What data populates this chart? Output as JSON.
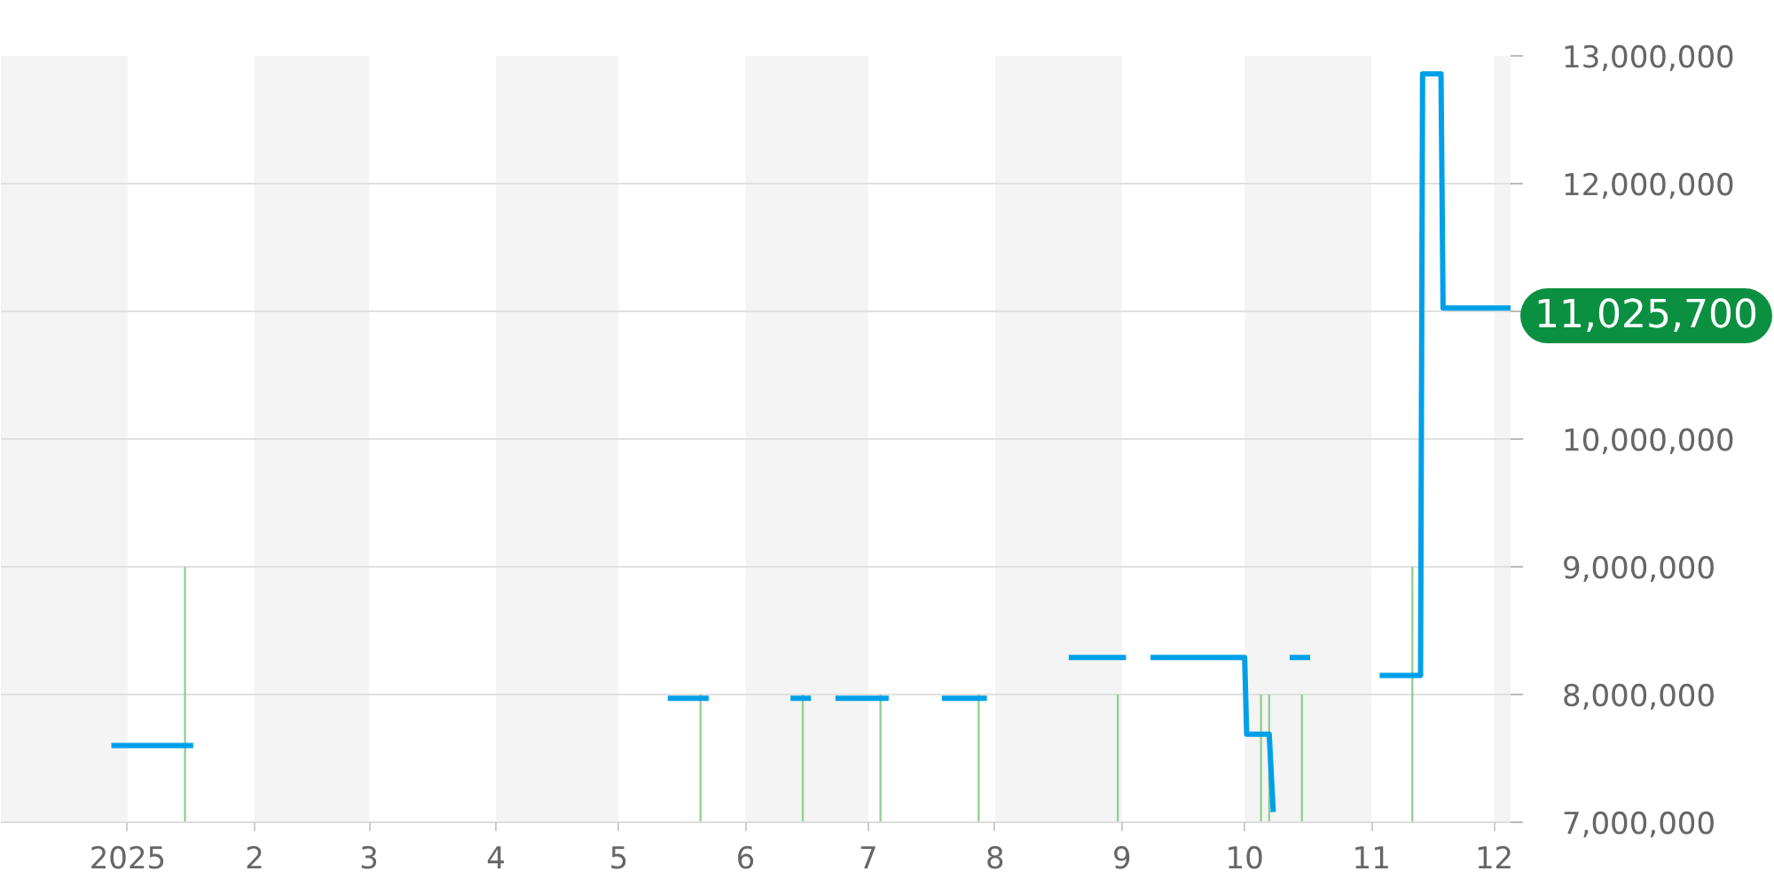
{
  "chart_data": {
    "type": "line",
    "xlim": [
      "2024-12-01",
      "2025-12-05"
    ],
    "xticks": [
      {
        "value": "2025-01-01",
        "label": "2025"
      },
      {
        "value": "2025-02-01",
        "label": "2"
      },
      {
        "value": "2025-03-01",
        "label": "3"
      },
      {
        "value": "2025-04-01",
        "label": "4"
      },
      {
        "value": "2025-05-01",
        "label": "5"
      },
      {
        "value": "2025-06-01",
        "label": "6"
      },
      {
        "value": "2025-07-01",
        "label": "7"
      },
      {
        "value": "2025-08-01",
        "label": "8"
      },
      {
        "value": "2025-09-01",
        "label": "9"
      },
      {
        "value": "2025-10-01",
        "label": "10"
      },
      {
        "value": "2025-11-01",
        "label": "11"
      },
      {
        "value": "2025-12-01",
        "label": "12"
      }
    ],
    "ylim": [
      7000000,
      13000000
    ],
    "yticks": [
      {
        "value": 7000000,
        "label": "7,000,000"
      },
      {
        "value": 8000000,
        "label": "8,000,000"
      },
      {
        "value": 9000000,
        "label": "9,000,000"
      },
      {
        "value": 10000000,
        "label": "10,000,000"
      },
      {
        "value": 11000000,
        "label": null
      },
      {
        "value": 12000000,
        "label": "12,000,000"
      },
      {
        "value": 13000000,
        "label": "13,000,000"
      }
    ],
    "grid": "y",
    "bands": [
      {
        "axis": "x",
        "from": "2024-12-01",
        "to": "2025-01-01",
        "color": "#f4f4f4"
      },
      {
        "axis": "x",
        "from": "2025-02-01",
        "to": "2025-03-01",
        "color": "#f4f4f4"
      },
      {
        "axis": "x",
        "from": "2025-04-01",
        "to": "2025-05-01",
        "color": "#f4f4f4"
      },
      {
        "axis": "x",
        "from": "2025-06-01",
        "to": "2025-07-01",
        "color": "#f4f4f4"
      },
      {
        "axis": "x",
        "from": "2025-08-01",
        "to": "2025-09-01",
        "color": "#f4f4f4"
      },
      {
        "axis": "x",
        "from": "2025-10-01",
        "to": "2025-11-01",
        "color": "#f4f4f4"
      },
      {
        "axis": "x",
        "from": "2025-12-01",
        "to": "2025-12-05",
        "color": "#f4f4f4"
      }
    ],
    "series": [
      {
        "type": "bar",
        "color": "#8ed08e",
        "x": [
          "2025-01-15",
          "2025-05-21",
          "2025-06-15",
          "2025-07-04",
          "2025-07-28",
          "2025-08-31",
          "2025-10-05",
          "2025-10-07",
          "2025-10-15",
          "2025-11-11"
        ],
        "values": [
          9000000,
          8000000,
          8000000,
          8000000,
          8000000,
          8000000,
          8000000,
          8000000,
          8000000,
          9000000
        ]
      },
      {
        "color": "#00a0e9",
        "x": [
          "2024-12-28",
          "2025-01-17",
          "2025-03-15",
          "2025-05-13",
          "2025-05-23",
          "2025-06-01",
          "2025-06-12",
          "2025-06-17",
          "2025-06-20",
          "2025-06-23",
          "2025-07-06",
          "2025-07-12",
          "2025-07-19",
          "2025-07-30",
          "2025-08-10",
          "2025-08-19",
          "2025-09-02",
          "2025-09-05",
          "2025-09-08",
          "2025-10-01",
          "2025-10-01T12:00",
          "2025-10-07",
          "2025-10-08",
          "2025-10-10",
          "2025-10-12",
          "2025-10-17",
          "2025-10-25",
          "2025-11-03",
          "2025-11-13",
          "2025-11-13T12:00",
          "2025-11-18",
          "2025-11-18T12:00",
          "2025-12-05"
        ],
        "values": [
          7600000,
          7600000,
          null,
          7970000,
          7970000,
          null,
          7970000,
          7970000,
          null,
          7970000,
          7970000,
          null,
          7970000,
          7970000,
          null,
          8290000,
          8290000,
          null,
          8290000,
          8290000,
          7690000,
          7690000,
          7080000,
          null,
          8290000,
          8290000,
          null,
          8150000,
          8150000,
          12860000,
          12860000,
          11025700,
          11025700
        ],
        "value_labels": [
          null,
          null,
          null,
          null,
          null,
          null,
          null,
          null,
          null,
          null,
          null,
          null,
          null,
          null,
          null,
          null,
          null,
          null,
          null,
          null,
          null,
          null,
          null,
          null,
          null,
          null,
          null,
          null,
          null,
          null,
          null,
          null,
          "11,025,700"
        ]
      }
    ]
  }
}
